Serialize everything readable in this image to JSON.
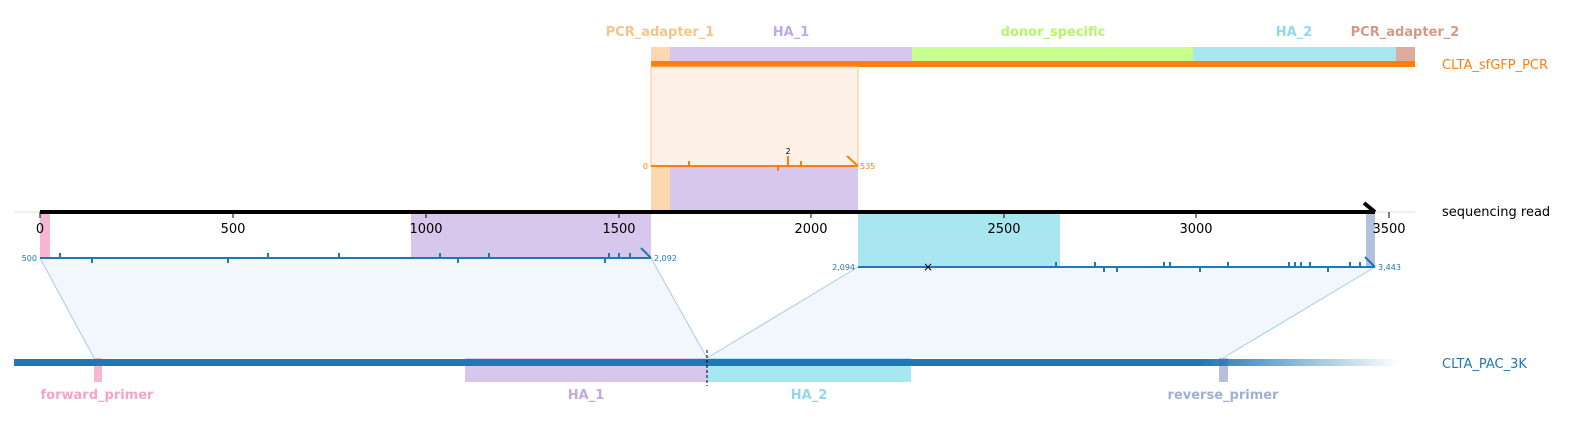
{
  "tracks": {
    "top": {
      "name": "CLTA_sfGFP_PCR",
      "color": "#ff7f0e",
      "features": [
        {
          "label": "PCR_adapter_1",
          "color": "#fbd8b0",
          "label_color": "#f5c48c"
        },
        {
          "label": "HA_1",
          "color": "#d8c7ec",
          "label_color": "#c2a8e4"
        },
        {
          "label": "donor_specific",
          "color": "#c7ff8a",
          "label_color": "#b5f56b"
        },
        {
          "label": "HA_2",
          "color": "#a8e6f0",
          "label_color": "#8fd9ea"
        },
        {
          "label": "PCR_adapter_2",
          "color": "#dcac9c",
          "label_color": "#d39a86"
        }
      ]
    },
    "middle": {
      "name": "sequencing read",
      "color": "#000000",
      "axis_ticks": [
        "0",
        "500",
        "1000",
        "1500",
        "2000",
        "2500",
        "3000",
        "3500"
      ]
    },
    "bottom": {
      "name": "CLTA_PAC_3K",
      "color": "#1f77b4",
      "features": [
        {
          "label": "forward_primer",
          "color": "#f7b6d2",
          "label_color": "#f4a3cc"
        },
        {
          "label": "HA_1",
          "color": "#d8c7ec",
          "label_color": "#c2a8e4"
        },
        {
          "label": "HA_2",
          "color": "#a8e6f0",
          "label_color": "#8fd9ea"
        },
        {
          "label": "reverse_primer",
          "color": "#b3c1dd",
          "label_color": "#9fb0d4"
        }
      ]
    }
  },
  "alignments": {
    "orange": {
      "start": "0",
      "end": "535",
      "mismatch_count": "2",
      "color": "#ff7f0e"
    },
    "blue_left": {
      "start": "500",
      "end": "2,092",
      "color": "#1f77b4"
    },
    "blue_right": {
      "start": "2,094",
      "end": "3,443",
      "color": "#1f77b4",
      "marker": "×"
    }
  }
}
